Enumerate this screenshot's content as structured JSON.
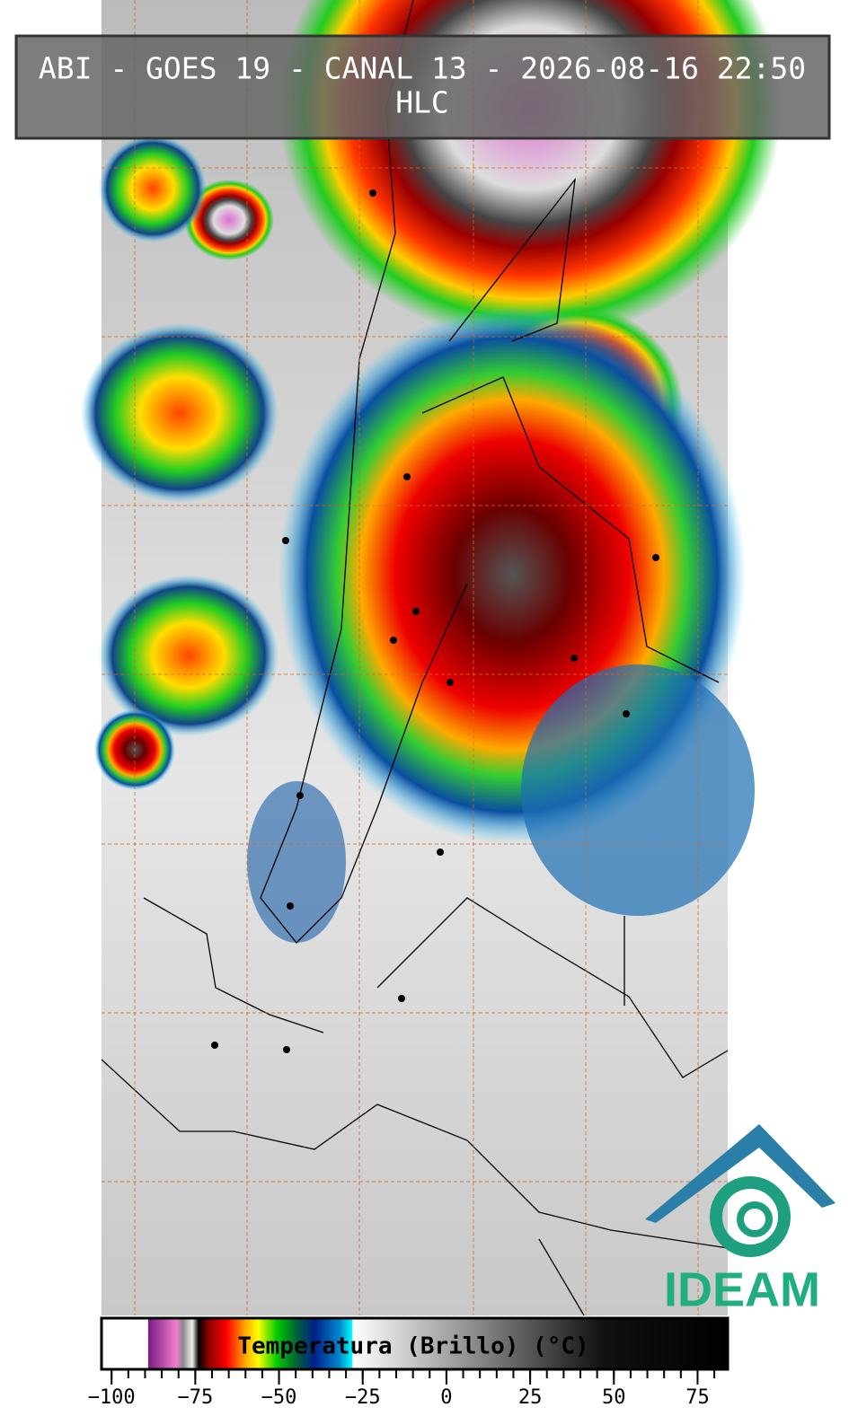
{
  "header": {
    "title": "ABI - GOES 19 - CANAL 13 - 2026-08-16 22:50",
    "subtitle": "HLC"
  },
  "logo": {
    "text": "IDEAM"
  },
  "colorbar": {
    "label": "Temperatura (Brillo) (°C)",
    "range": [
      -103,
      84
    ],
    "minor_step": 5,
    "ticks": [
      {
        "value": -100,
        "label": "−100"
      },
      {
        "value": -75,
        "label": "−75"
      },
      {
        "value": -50,
        "label": "−50"
      },
      {
        "value": -25,
        "label": "−25"
      },
      0,
      25,
      50,
      75
    ]
  }
}
